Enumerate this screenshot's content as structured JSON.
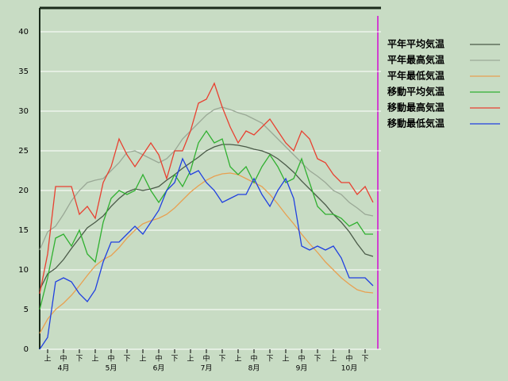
{
  "chart_data": {
    "type": "line",
    "categories": [
      null,
      "上",
      null,
      "中",
      null,
      "下",
      null,
      "上",
      null,
      "中",
      null,
      "下",
      null,
      "上",
      null,
      "中",
      null,
      "下",
      null,
      "上",
      null,
      "中",
      null,
      "下",
      null,
      "上",
      null,
      "中",
      null,
      "下",
      null,
      "上",
      null,
      "中",
      null,
      "下",
      null,
      "上",
      null,
      "中",
      null,
      "下",
      null
    ],
    "month_labels": [
      "4月",
      "5月",
      "6月",
      "7月",
      "8月",
      "9月",
      "10月"
    ],
    "ylim": [
      0,
      43
    ],
    "yticks": [
      0,
      5,
      10,
      15,
      20,
      25,
      30,
      35,
      40
    ],
    "grid": true,
    "series": [
      {
        "name": "平年平均気温",
        "color": "#4a5a48",
        "values": [
          7.5,
          9.5,
          10.2,
          11.3,
          12.7,
          14,
          15.3,
          16,
          16.8,
          18,
          19,
          19.8,
          20.2,
          20,
          20.2,
          20.5,
          21.3,
          22,
          22.8,
          23.5,
          24.2,
          25,
          25.5,
          25.8,
          25.8,
          25.7,
          25.5,
          25.2,
          25,
          24.6,
          24,
          23.2,
          22.3,
          21.2,
          20.2,
          19.2,
          18.2,
          17,
          16,
          14.8,
          13.3,
          12,
          11.7
        ]
      },
      {
        "name": "平年最高気温",
        "color": "#9aa896",
        "values": [
          12.5,
          14.8,
          15.5,
          17,
          18.7,
          20,
          21,
          21.3,
          21.5,
          22.5,
          23.5,
          24.8,
          25,
          24.5,
          24,
          23.5,
          24,
          25,
          26.5,
          27.5,
          28.5,
          29.5,
          30.2,
          30.5,
          30.2,
          29.8,
          29.5,
          29,
          28.5,
          27.5,
          26.5,
          25.5,
          24.5,
          23.5,
          22.5,
          21.8,
          21,
          20,
          19.5,
          18.5,
          17.8,
          17,
          16.8
        ]
      },
      {
        "name": "平年最低気温",
        "color": "#e8a050",
        "values": [
          2,
          3.8,
          5,
          5.8,
          6.8,
          8,
          9.3,
          10.5,
          11.3,
          11.8,
          12.8,
          14,
          15,
          15.8,
          16.2,
          16.5,
          17,
          17.8,
          18.8,
          19.8,
          20.6,
          21.3,
          21.8,
          22.1,
          22.2,
          22,
          21.5,
          21,
          20.5,
          19.5,
          18.3,
          17,
          15.8,
          14.5,
          13.3,
          12.2,
          11,
          10,
          9,
          8.2,
          7.5,
          7.2,
          7.1
        ]
      },
      {
        "name": "移動平均気温",
        "color": "#30b030",
        "values": [
          5,
          9,
          14,
          14.5,
          13,
          15,
          12,
          11,
          16,
          19,
          20,
          19.5,
          20,
          22,
          20,
          18.5,
          20,
          22,
          20.5,
          22.5,
          26,
          27.5,
          26,
          26.5,
          23,
          22,
          23,
          21,
          23,
          24.5,
          23,
          21,
          21.5,
          24,
          21,
          18,
          17,
          17,
          16.5,
          15.5,
          16,
          14.5,
          14.5
        ]
      },
      {
        "name": "移動最高気温",
        "color": "#e84030",
        "values": [
          7,
          12,
          20.5,
          20.5,
          20.5,
          17,
          18,
          16.5,
          21,
          23,
          26.5,
          24.5,
          23,
          24.5,
          26,
          24.5,
          21.5,
          25,
          25,
          27.5,
          31,
          31.5,
          33.5,
          30.5,
          28,
          26,
          27.5,
          27,
          28,
          29,
          27.5,
          26,
          25,
          27.5,
          26.5,
          24,
          23.5,
          22,
          21,
          21,
          19.5,
          20.5,
          18.5
        ]
      },
      {
        "name": "移動最低気温",
        "color": "#2040e0",
        "values": [
          0,
          1.5,
          8.5,
          9,
          8.5,
          7,
          6,
          7.5,
          11,
          13.5,
          13.5,
          14.5,
          15.5,
          14.5,
          16,
          17.5,
          20,
          21,
          24,
          22,
          22.5,
          21,
          20,
          18.5,
          19,
          19.5,
          19.5,
          21.5,
          19.5,
          18,
          20,
          21.5,
          19,
          13,
          12.5,
          13,
          12.5,
          13,
          11.5,
          9,
          9,
          9,
          8
        ]
      }
    ]
  }
}
